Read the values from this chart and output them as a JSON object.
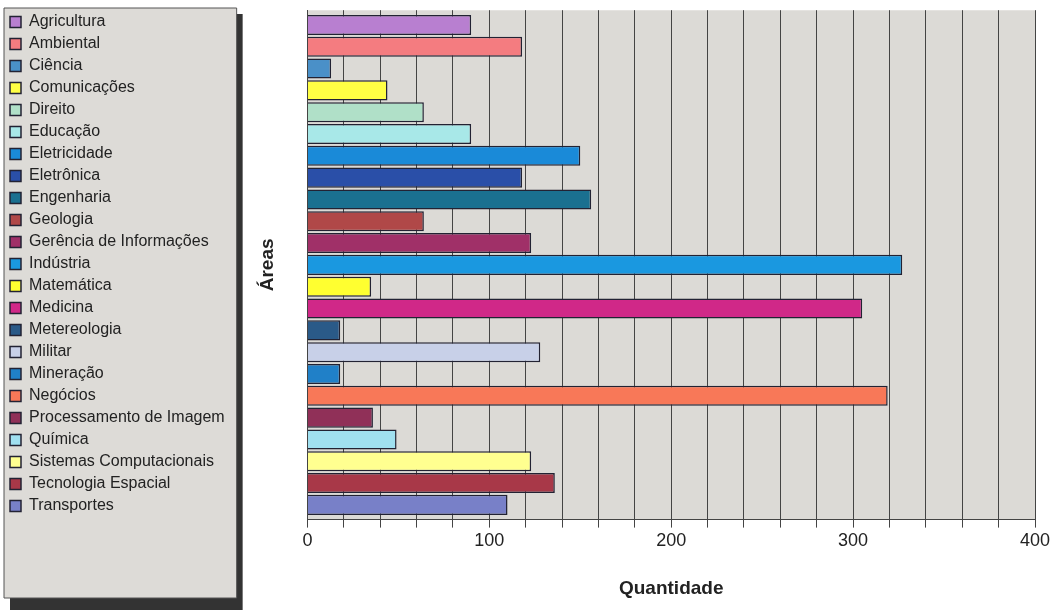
{
  "chart_data": {
    "type": "bar",
    "orientation": "horizontal",
    "xlabel": "Quantidade",
    "ylabel": "Áreas",
    "categories": [
      null
    ],
    "series": [
      {
        "name": "Agricultura",
        "color": "#b87fd0",
        "values": [
          90
        ]
      },
      {
        "name": "Ambiental",
        "color": "#f47c80",
        "values": [
          118
        ]
      },
      {
        "name": "Ciência",
        "color": "#4a90c8",
        "values": [
          13
        ]
      },
      {
        "name": "Comunicações",
        "color": "#ffff44",
        "values": [
          44
        ]
      },
      {
        "name": "Direito",
        "color": "#b0e0c8",
        "values": [
          64
        ]
      },
      {
        "name": "Educação",
        "color": "#a8e8e8",
        "values": [
          90
        ]
      },
      {
        "name": "Eletricidade",
        "color": "#1a8ad8",
        "values": [
          150
        ]
      },
      {
        "name": "Eletrônica",
        "color": "#2a4fa8",
        "values": [
          118
        ]
      },
      {
        "name": "Engenharia",
        "color": "#1a7090",
        "values": [
          156
        ]
      },
      {
        "name": "Geologia",
        "color": "#b04848",
        "values": [
          64
        ]
      },
      {
        "name": "Gerência de Informações",
        "color": "#a03068",
        "values": [
          123
        ]
      },
      {
        "name": "Indústria",
        "color": "#1a98e0",
        "values": [
          327
        ]
      },
      {
        "name": "Matemática",
        "color": "#ffff30",
        "values": [
          35
        ]
      },
      {
        "name": "Medicina",
        "color": "#d02888",
        "values": [
          305
        ]
      },
      {
        "name": "Metereologia",
        "color": "#2a5a88",
        "values": [
          18
        ]
      },
      {
        "name": "Militar",
        "color": "#c8d0e8",
        "values": [
          128
        ]
      },
      {
        "name": "Mineração",
        "color": "#2080c8",
        "values": [
          18
        ]
      },
      {
        "name": "Negócios",
        "color": "#f87858",
        "values": [
          319
        ]
      },
      {
        "name": "Processamento de Imagem",
        "color": "#903058",
        "values": [
          36
        ]
      },
      {
        "name": "Química",
        "color": "#a0e0f0",
        "values": [
          49
        ]
      },
      {
        "name": "Sistemas Computacionais",
        "color": "#ffff90",
        "values": [
          123
        ]
      },
      {
        "name": "Tecnologia Espacial",
        "color": "#a83848",
        "values": [
          136
        ]
      },
      {
        "name": "Transportes",
        "color": "#7880c8",
        "values": [
          110
        ]
      }
    ],
    "xlim": [
      0,
      400
    ],
    "xticks": [
      0,
      {
        "value": 20,
        "label": null
      },
      {
        "value": 40,
        "label": null
      },
      {
        "value": 60,
        "label": null
      },
      {
        "value": 80,
        "label": null
      },
      100,
      {
        "value": 120,
        "label": null
      },
      {
        "value": 140,
        "label": null
      },
      {
        "value": 160,
        "label": null
      },
      {
        "value": 180,
        "label": null
      },
      200,
      {
        "value": 220,
        "label": null
      },
      {
        "value": 240,
        "label": null
      },
      {
        "value": 260,
        "label": null
      },
      {
        "value": 280,
        "label": null
      },
      300,
      {
        "value": 320,
        "label": null
      },
      {
        "value": 340,
        "label": null
      },
      {
        "value": 360,
        "label": null
      },
      {
        "value": 380,
        "label": null
      },
      400
    ],
    "grid": "x",
    "legend": "left"
  }
}
